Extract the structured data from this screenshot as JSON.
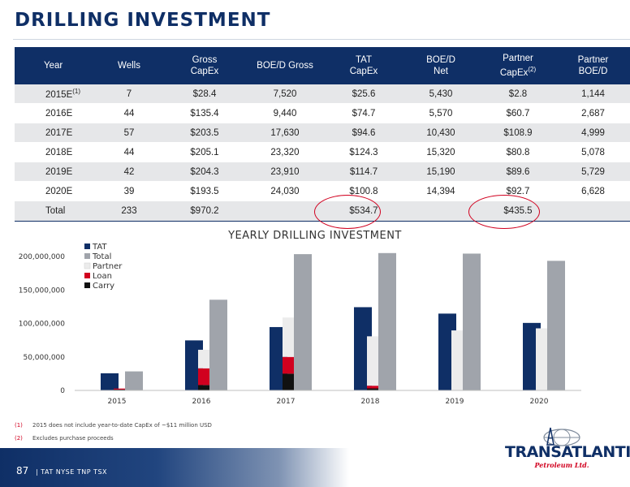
{
  "page_title": "DRILLING INVESTMENT",
  "table": {
    "headers": [
      {
        "line1": "Year",
        "line2": "",
        "sup": ""
      },
      {
        "line1": "Wells",
        "line2": "",
        "sup": ""
      },
      {
        "line1": "Gross",
        "line2": "CapEx",
        "sup": ""
      },
      {
        "line1": "BOE/D Gross",
        "line2": "",
        "sup": ""
      },
      {
        "line1": "TAT",
        "line2": "CapEx",
        "sup": ""
      },
      {
        "line1": "BOE/D",
        "line2": "Net",
        "sup": ""
      },
      {
        "line1": "Partner",
        "line2": "CapEx",
        "sup": "(2)"
      },
      {
        "line1": "Partner",
        "line2": "BOE/D",
        "sup": ""
      }
    ],
    "rows": [
      {
        "year": "2015E",
        "sup": "(1)",
        "wells": "7",
        "gross_capex": "$28.4",
        "boed_gross": "7,520",
        "tat_capex": "$25.6",
        "boed_net": "5,430",
        "partner_capex": "$2.8",
        "partner_boed": "1,144"
      },
      {
        "year": "2016E",
        "sup": "",
        "wells": "44",
        "gross_capex": "$135.4",
        "boed_gross": "9,440",
        "tat_capex": "$74.7",
        "boed_net": "5,570",
        "partner_capex": "$60.7",
        "partner_boed": "2,687"
      },
      {
        "year": "2017E",
        "sup": "",
        "wells": "57",
        "gross_capex": "$203.5",
        "boed_gross": "17,630",
        "tat_capex": "$94.6",
        "boed_net": "10,430",
        "partner_capex": "$108.9",
        "partner_boed": "4,999"
      },
      {
        "year": "2018E",
        "sup": "",
        "wells": "44",
        "gross_capex": "$205.1",
        "boed_gross": "23,320",
        "tat_capex": "$124.3",
        "boed_net": "15,320",
        "partner_capex": "$80.8",
        "partner_boed": "5,078"
      },
      {
        "year": "2019E",
        "sup": "",
        "wells": "42",
        "gross_capex": "$204.3",
        "boed_gross": "23,910",
        "tat_capex": "$114.7",
        "boed_net": "15,190",
        "partner_capex": "$89.6",
        "partner_boed": "5,729"
      },
      {
        "year": "2020E",
        "sup": "",
        "wells": "39",
        "gross_capex": "$193.5",
        "boed_gross": "24,030",
        "tat_capex": "$100.8",
        "boed_net": "14,394",
        "partner_capex": "$92.7",
        "partner_boed": "6,628"
      }
    ],
    "total": {
      "label": "Total",
      "wells": "233",
      "gross_capex": "$970.2",
      "boed_gross": "",
      "tat_capex": "$534.7",
      "boed_net": "",
      "partner_capex": "$435.5",
      "partner_boed": ""
    }
  },
  "chart_data": {
    "type": "bar",
    "title": "YEARLY DRILLING INVESTMENT",
    "categories": [
      "2015",
      "2016",
      "2017",
      "2018",
      "2019",
      "2020"
    ],
    "ylim": [
      0,
      200000000
    ],
    "yticks": [
      0,
      50000000,
      100000000,
      150000000,
      200000000
    ],
    "ytick_labels": [
      "0",
      "50,000,000",
      "100,000,000",
      "150,000,000",
      "200,000,000"
    ],
    "legend": [
      "TAT",
      "Total",
      "Partner",
      "Loan",
      "Carry"
    ],
    "legend_position": "top-left",
    "grid": false,
    "series": [
      {
        "name": "TAT",
        "color": "#0f2f66",
        "values": [
          25600000,
          74700000,
          94600000,
          124300000,
          114700000,
          100800000
        ]
      },
      {
        "name": "Total",
        "color": "#a0a4ab",
        "values": [
          28400000,
          135400000,
          203500000,
          205100000,
          204300000,
          193500000
        ]
      },
      {
        "name": "Partner",
        "color": "#ececec",
        "values": [
          2800000,
          60700000,
          108900000,
          80800000,
          89600000,
          92700000
        ]
      },
      {
        "name": "Loan",
        "color": "#d1001f",
        "values": [
          1500000,
          25000000,
          25000000,
          4000000,
          0,
          0
        ]
      },
      {
        "name": "Carry",
        "color": "#111111",
        "values": [
          1300000,
          8000000,
          25000000,
          3000000,
          0,
          0
        ]
      }
    ]
  },
  "footnotes": [
    {
      "num": "(1)",
      "text": "2015 does not include year-to-date CapEx of ~$11 million USD"
    },
    {
      "num": "(2)",
      "text": "Excludes purchase proceeds"
    }
  ],
  "footer": {
    "page_number": "87",
    "ticker": "| TAT NYSE  TNP TSX"
  },
  "logo": {
    "name": "TRANSATLANTIC",
    "sub": "Petroleum Ltd."
  }
}
